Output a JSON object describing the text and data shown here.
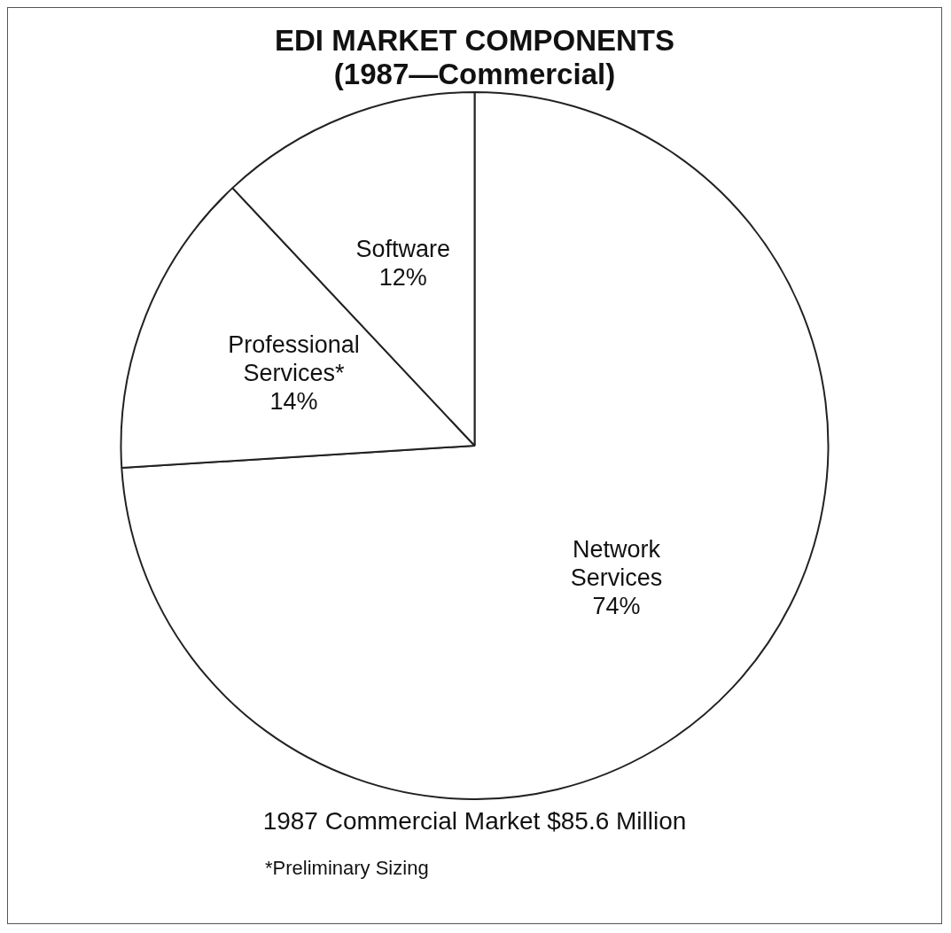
{
  "chart_data": {
    "type": "pie",
    "title": "EDI MARKET COMPONENTS",
    "subtitle": "(1987—Commercial)",
    "categories": [
      "Network Services",
      "Professional Services*",
      "Software"
    ],
    "values": [
      74,
      14,
      12
    ],
    "colors": [
      "#ffffff",
      "#ffffff",
      "#ffffff"
    ],
    "value_labels": [
      "74%",
      "14%",
      "12%"
    ],
    "legend": false,
    "annotations": [
      "1987 Commercial Market $85.6 Million",
      "*Preliminary Sizing"
    ]
  }
}
